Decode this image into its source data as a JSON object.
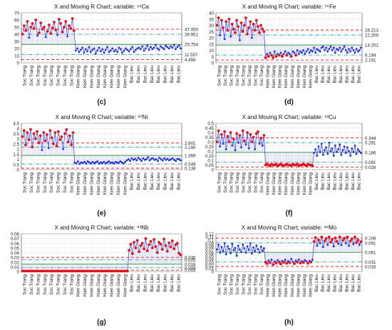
{
  "colors": {
    "in_control": "#1f2bd6",
    "out_of_control": "#e8111a",
    "center_line": "#1a8f2a",
    "limit_3sigma": "#e8111a",
    "limit_2sigma": "#1fa6b3",
    "limit_1sigma": "#1a8f2a"
  },
  "site_labels": [
    "Soc Trang",
    "Kien Giang",
    "Bac Lieu"
  ],
  "chart_data": [
    {
      "type": "line",
      "panel": "c",
      "tag": "(c)",
      "title": "X and Moving R Chart; variable: ⁴⁴Ca",
      "ylim": [
        0,
        70
      ],
      "yticks": [
        0,
        10,
        20,
        30,
        40,
        50,
        60,
        70
      ],
      "limit_labels": [
        "47.050",
        "39.951",
        "25.754",
        "11.557",
        "4.458"
      ],
      "limits": [
        47.05,
        39.951,
        25.754,
        11.557,
        4.458
      ],
      "x_labels": [
        "Soc Trang",
        "Soc Trang",
        "Soc Trang",
        "Soc Trang",
        "Soc Trang",
        "Soc Trang",
        "Soc Trang",
        "Soc Trang",
        "Kien Giang",
        "Kien Giang",
        "Kien Giang",
        "Kien Giang",
        "Kien Giang",
        "Kien Giang",
        "Kien Giang",
        "Kien Giang",
        "Bac Lieu",
        "Bac Lieu",
        "Bac Lieu",
        "Bac Lieu",
        "Bac Lieu",
        "Bac Lieu",
        "Bac Lieu",
        "Bac Lieu"
      ],
      "series": [
        {
          "values": [
            40,
            52,
            45,
            58,
            35,
            50,
            55,
            48,
            60,
            38,
            42,
            56,
            47,
            50,
            36,
            44,
            53,
            41,
            49,
            57,
            46,
            39,
            61,
            55,
            43,
            50,
            58,
            37,
            52,
            48,
            62,
            45,
            17,
            20,
            15,
            18,
            21,
            14,
            19,
            16,
            22,
            15,
            18,
            20,
            13,
            17,
            21,
            16,
            19,
            14,
            18,
            22,
            15,
            17,
            20,
            16,
            18,
            15,
            21,
            19,
            14,
            17,
            20,
            18,
            16,
            19,
            22,
            15,
            18,
            20,
            21,
            19,
            23,
            17,
            20,
            24,
            18,
            22,
            19,
            21,
            25,
            20,
            18,
            23,
            21,
            19,
            24,
            22,
            20,
            23,
            21,
            25,
            19,
            22,
            24,
            20
          ]
        }
      ]
    },
    {
      "type": "line",
      "panel": "d",
      "tag": "(d)",
      "title": "X and Moving R Chart; variable: ⁵⁶Fe",
      "ylim": [
        0,
        40
      ],
      "yticks": [
        0,
        5,
        10,
        15,
        20,
        25,
        30,
        35,
        40
      ],
      "limit_labels": [
        "26.213",
        "22.209",
        "14.202",
        "6.194",
        "2.191"
      ],
      "limits": [
        26.213,
        22.209,
        14.202,
        6.194,
        2.191
      ],
      "x_labels": [
        "Soc Trang",
        "Soc Trang",
        "Soc Trang",
        "Soc Trang",
        "Soc Trang",
        "Soc Trang",
        "Soc Trang",
        "Soc Trang",
        "Kien Giang",
        "Kien Giang",
        "Kien Giang",
        "Kien Giang",
        "Kien Giang",
        "Kien Giang",
        "Kien Giang",
        "Kien Giang",
        "Bac Lieu",
        "Bac Lieu",
        "Bac Lieu",
        "Bac Lieu",
        "Bac Lieu",
        "Bac Lieu",
        "Bac Lieu",
        "Bac Lieu"
      ],
      "series": [
        {
          "values": [
            30,
            36,
            22,
            34,
            28,
            19,
            33,
            26,
            35,
            21,
            31,
            27,
            24,
            34,
            29,
            18,
            32,
            25,
            30,
            36,
            23,
            28,
            33,
            20,
            31,
            26,
            34,
            29,
            24,
            30,
            27,
            25,
            4,
            7,
            5,
            8,
            6,
            4,
            9,
            5,
            7,
            6,
            8,
            5,
            7,
            9,
            6,
            8,
            7,
            5,
            9,
            8,
            6,
            10,
            7,
            9,
            8,
            10,
            7,
            9,
            11,
            8,
            10,
            9,
            12,
            8,
            11,
            10,
            9,
            12,
            13,
            10,
            12,
            9,
            11,
            13,
            10,
            12,
            8,
            11,
            10,
            12,
            9,
            11,
            13,
            10,
            8,
            11,
            9,
            12,
            10,
            8,
            11,
            9,
            10,
            12
          ]
        }
      ]
    },
    {
      "type": "line",
      "panel": "e",
      "tag": "(e)",
      "title": "X and Moving R Chart; variable: ⁶⁰Ni",
      "ylim": [
        0,
        4.5
      ],
      "yticks": [
        0,
        0.5,
        1,
        1.5,
        2,
        2.5,
        3,
        3.5,
        4,
        4.5
      ],
      "limit_labels": [
        "2.601",
        "2.190",
        "1.369",
        "0.549",
        "0.138"
      ],
      "limits": [
        2.601,
        2.19,
        1.369,
        0.549,
        0.138
      ],
      "x_labels": [
        "Soc Trang",
        "Soc Trang",
        "Soc Trang",
        "Soc Trang",
        "Soc Trang",
        "Soc Trang",
        "Soc Trang",
        "Soc Trang",
        "Kien Giang",
        "Kien Giang",
        "Kien Giang",
        "Kien Giang",
        "Kien Giang",
        "Kien Giang",
        "Kien Giang",
        "Kien Giang",
        "Bac Lieu",
        "Bac Lieu",
        "Bac Lieu",
        "Bac Lieu",
        "Bac Lieu",
        "Bac Lieu",
        "Bac Lieu",
        "Bac Lieu"
      ],
      "series": [
        {
          "values": [
            3.2,
            3.8,
            2.4,
            3.6,
            2.9,
            3.9,
            2.2,
            3.5,
            3.0,
            3.7,
            2.6,
            3.3,
            1.9,
            3.6,
            2.8,
            3.4,
            2.1,
            3.8,
            3.1,
            2.5,
            3.6,
            2.3,
            3.7,
            2.9,
            3.2,
            2.0,
            3.5,
            3.9,
            2.7,
            3.3,
            2.4,
            3.6,
            0.7,
            0.6,
            0.8,
            0.55,
            0.7,
            0.65,
            0.75,
            0.6,
            0.8,
            0.7,
            0.6,
            0.75,
            0.65,
            0.7,
            0.8,
            0.6,
            0.7,
            0.65,
            0.75,
            0.6,
            0.7,
            0.8,
            0.65,
            0.7,
            0.6,
            0.75,
            0.7,
            0.65,
            0.8,
            0.7,
            0.6,
            0.75,
            0.9,
            1.0,
            0.85,
            1.1,
            0.95,
            1.05,
            0.9,
            1.15,
            1.0,
            0.85,
            1.1,
            0.95,
            1.0,
            1.2,
            0.9,
            1.05,
            1.1,
            0.95,
            1.0,
            0.85,
            1.15,
            1.0,
            0.9,
            1.1,
            0.95,
            1.05,
            0.9,
            1.0,
            1.1,
            0.95,
            0.85,
            1.05,
            1.0,
            0.9
          ]
        }
      ]
    },
    {
      "type": "line",
      "panel": "f",
      "tag": "(f)",
      "title": "X and Moving R Chart; variable: ⁶³Cu",
      "ylim": [
        0,
        0.5
      ],
      "yticks": [
        0,
        0.05,
        0.1,
        0.15,
        0.2,
        0.25,
        0.3,
        0.35,
        0.4,
        0.45,
        0.5
      ],
      "limit_labels": [
        "0.344",
        "0.291",
        "0.186",
        "0.081",
        "0.028"
      ],
      "limits": [
        0.344,
        0.291,
        0.186,
        0.081,
        0.028
      ],
      "x_labels": [
        "Soc Trang",
        "Soc Trang",
        "Soc Trang",
        "Soc Trang",
        "Soc Trang",
        "Soc Trang",
        "Soc Trang",
        "Soc Trang",
        "Kien Giang",
        "Kien Giang",
        "Kien Giang",
        "Kien Giang",
        "Kien Giang",
        "Kien Giang",
        "Kien Giang",
        "Kien Giang",
        "Bac Lieu",
        "Bac Lieu",
        "Bac Lieu",
        "Bac Lieu",
        "Bac Lieu",
        "Bac Lieu",
        "Bac Lieu",
        "Bac Lieu"
      ],
      "series": [
        {
          "values": [
            0.3,
            0.42,
            0.25,
            0.38,
            0.28,
            0.41,
            0.22,
            0.36,
            0.3,
            0.4,
            0.26,
            0.33,
            0.21,
            0.39,
            0.29,
            0.37,
            0.24,
            0.42,
            0.31,
            0.27,
            0.4,
            0.23,
            0.38,
            0.3,
            0.35,
            0.22,
            0.39,
            0.41,
            0.28,
            0.34,
            0.26,
            0.37,
            0.05,
            0.06,
            0.05,
            0.04,
            0.06,
            0.05,
            0.05,
            0.06,
            0.04,
            0.05,
            0.06,
            0.05,
            0.04,
            0.05,
            0.06,
            0.05,
            0.05,
            0.04,
            0.06,
            0.05,
            0.05,
            0.06,
            0.04,
            0.05,
            0.05,
            0.06,
            0.05,
            0.04,
            0.06,
            0.05,
            0.05,
            0.04,
            0.18,
            0.22,
            0.15,
            0.25,
            0.19,
            0.28,
            0.16,
            0.21,
            0.24,
            0.17,
            0.29,
            0.2,
            0.23,
            0.15,
            0.26,
            0.19,
            0.22,
            0.27,
            0.16,
            0.21,
            0.25,
            0.18,
            0.24,
            0.2,
            0.15,
            0.23,
            0.19,
            0.26,
            0.17,
            0.22,
            0.2,
            0.18
          ]
        }
      ]
    },
    {
      "type": "line",
      "panel": "g",
      "tag": "(g)",
      "title": "X and Moving R Chart; variable: ⁹³Nb",
      "ylim": [
        0,
        0.08
      ],
      "yticks": [
        0,
        0.01,
        0.02,
        0.03,
        0.04,
        0.05,
        0.06,
        0.07,
        0.08
      ],
      "limit_labels": [
        "0.030",
        "0.025",
        "0.016",
        "0.008",
        "0.003"
      ],
      "limits": [
        0.03,
        0.025,
        0.016,
        0.008,
        0.003
      ],
      "x_labels": [
        "Soc Trang",
        "Soc Trang",
        "Soc Trang",
        "Soc Trang",
        "Soc Trang",
        "Soc Trang",
        "Soc Trang",
        "Soc Trang",
        "Kien Giang",
        "Kien Giang",
        "Kien Giang",
        "Kien Giang",
        "Kien Giang",
        "Kien Giang",
        "Kien Giang",
        "Kien Giang",
        "Bac Lieu",
        "Bac Lieu",
        "Bac Lieu",
        "Bac Lieu",
        "Bac Lieu",
        "Bac Lieu",
        "Bac Lieu",
        "Bac Lieu"
      ],
      "series": [
        {
          "values": [
            0.001,
            0.001,
            0.001,
            0.001,
            0.001,
            0.001,
            0.001,
            0.001,
            0.001,
            0.001,
            0.001,
            0.001,
            0.001,
            0.001,
            0.001,
            0.001,
            0.001,
            0.001,
            0.001,
            0.001,
            0.001,
            0.001,
            0.001,
            0.001,
            0.001,
            0.001,
            0.001,
            0.001,
            0.001,
            0.001,
            0.001,
            0.001,
            0.001,
            0.001,
            0.001,
            0.001,
            0.001,
            0.001,
            0.001,
            0.001,
            0.001,
            0.001,
            0.001,
            0.001,
            0.001,
            0.001,
            0.001,
            0.001,
            0.001,
            0.001,
            0.001,
            0.001,
            0.001,
            0.001,
            0.001,
            0.001,
            0.001,
            0.001,
            0.001,
            0.001,
            0.001,
            0.001,
            0.001,
            0.001,
            0.045,
            0.058,
            0.038,
            0.062,
            0.05,
            0.066,
            0.042,
            0.055,
            0.06,
            0.048,
            0.07,
            0.044,
            0.057,
            0.064,
            0.05,
            0.068,
            0.053,
            0.04,
            0.062,
            0.058,
            0.047,
            0.069,
            0.055,
            0.043,
            0.061,
            0.052,
            0.065,
            0.048,
            0.057,
            0.06,
            0.039,
            0.035
          ]
        }
      ]
    },
    {
      "type": "line",
      "panel": "h",
      "tag": "(h)",
      "title": "X and Moving R Chart; variable: ⁹⁸Mo",
      "ylim": [
        0,
        0.12
      ],
      "yticks": [
        0,
        0.01,
        0.02,
        0.03,
        0.04,
        0.05,
        0.06,
        0.07,
        0.08,
        0.09,
        0.1,
        0.11,
        0.12
      ],
      "limit_labels": [
        "0.106",
        "0.091",
        "0.061",
        "0.031",
        "0.016"
      ],
      "limits": [
        0.106,
        0.091,
        0.061,
        0.031,
        0.016
      ],
      "x_labels": [
        "Soc Trang",
        "Soc Trang",
        "Soc Trang",
        "Soc Trang",
        "Soc Trang",
        "Soc Trang",
        "Soc Trang",
        "Soc Trang",
        "Kien Giang",
        "Kien Giang",
        "Kien Giang",
        "Kien Giang",
        "Kien Giang",
        "Kien Giang",
        "Kien Giang",
        "Kien Giang",
        "Bac Lieu",
        "Bac Lieu",
        "Bac Lieu",
        "Bac Lieu",
        "Bac Lieu",
        "Bac Lieu",
        "Bac Lieu",
        "Bac Lieu"
      ],
      "series": [
        {
          "values": [
            0.07,
            0.085,
            0.06,
            0.078,
            0.065,
            0.09,
            0.055,
            0.08,
            0.072,
            0.058,
            0.088,
            0.068,
            0.075,
            0.05,
            0.082,
            0.07,
            0.062,
            0.086,
            0.074,
            0.06,
            0.08,
            0.069,
            0.09,
            0.057,
            0.077,
            0.065,
            0.083,
            0.071,
            0.06,
            0.079,
            0.066,
            0.074,
            0.03,
            0.025,
            0.035,
            0.028,
            0.038,
            0.022,
            0.032,
            0.027,
            0.036,
            0.03,
            0.024,
            0.034,
            0.029,
            0.037,
            0.026,
            0.033,
            0.028,
            0.04,
            0.031,
            0.025,
            0.035,
            0.03,
            0.038,
            0.027,
            0.033,
            0.029,
            0.036,
            0.032,
            0.026,
            0.034,
            0.03,
            0.037,
            0.095,
            0.108,
            0.082,
            0.1,
            0.09,
            0.11,
            0.078,
            0.098,
            0.105,
            0.085,
            0.11,
            0.093,
            0.102,
            0.08,
            0.107,
            0.096,
            0.088,
            0.11,
            0.084,
            0.099,
            0.106,
            0.09,
            0.11,
            0.082,
            0.097,
            0.104,
            0.087,
            0.11,
            0.092,
            0.1,
            0.085,
            0.095
          ]
        }
      ]
    }
  ]
}
